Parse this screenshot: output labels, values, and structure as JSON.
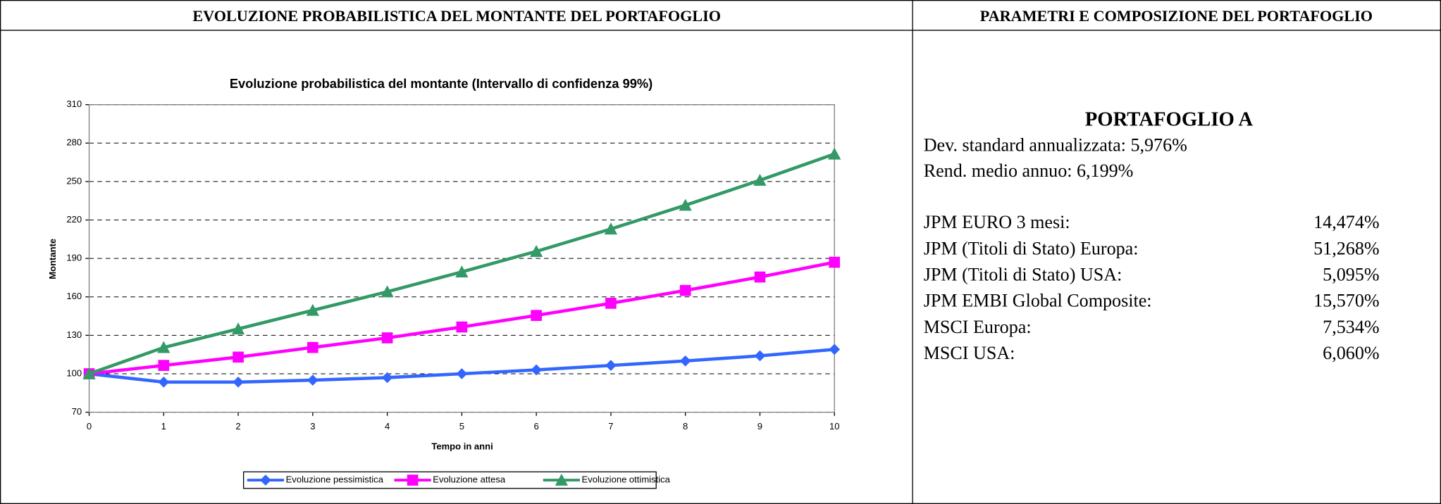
{
  "headers": [
    "EVOLUZIONE PROBABILISTICA DEL MONTANTE DEL PORTAFOGLIO",
    "PARAMETRI E COMPOSIZIONE DEL PORTAFOGLIO"
  ],
  "chart_data": {
    "type": "line",
    "title": "Evoluzione probabilistica del montante (Intervallo di confidenza 99%)",
    "x_label": "Tempo in anni",
    "y_label": "Montante",
    "x": [
      0,
      1,
      2,
      3,
      4,
      5,
      6,
      7,
      8,
      9,
      10
    ],
    "xlim": [
      0,
      10
    ],
    "xticks": [
      0,
      1,
      2,
      3,
      4,
      5,
      6,
      7,
      8,
      9,
      10
    ],
    "ylim": [
      70,
      310
    ],
    "yticks": [
      70,
      100,
      130,
      160,
      190,
      220,
      250,
      280,
      310
    ],
    "grid": true,
    "legend": "bottom",
    "series": [
      {
        "name": "Evoluzione pessimistica",
        "color": "#3366ff",
        "marker": "diamond",
        "values": [
          100,
          93.5,
          93.5,
          95,
          97,
          100,
          103,
          106.5,
          110,
          114,
          119
        ]
      },
      {
        "name": "Evoluzione attesa",
        "color": "#ff00ff",
        "marker": "square",
        "values": [
          100,
          106.5,
          113,
          120.5,
          128,
          136.5,
          145.5,
          155,
          165,
          175.5,
          187
        ]
      },
      {
        "name": "Evoluzione ottimistica",
        "color": "#339966",
        "marker": "triangle",
        "values": [
          100,
          120.5,
          135,
          149.5,
          164,
          179.5,
          195.5,
          213,
          231.5,
          251,
          271.5
        ]
      }
    ]
  },
  "portfolio": {
    "title": "PORTAFOGLIO A",
    "stats": [
      "Dev. standard annualizzata: 5,976%",
      "Rend. medio annuo: 6,199%"
    ],
    "composition": [
      {
        "name": "JPM EURO 3 mesi:",
        "value": "14,474%"
      },
      {
        "name": "JPM (Titoli di Stato) Europa:",
        "value": "51,268%"
      },
      {
        "name": "JPM (Titoli di Stato) USA:",
        "value": "5,095%"
      },
      {
        "name": "JPM EMBI Global Composite:",
        "value": "15,570%"
      },
      {
        "name": "MSCI Europa:",
        "value": "7,534%"
      },
      {
        "name": "MSCI USA:",
        "value": "6,060%"
      }
    ]
  }
}
